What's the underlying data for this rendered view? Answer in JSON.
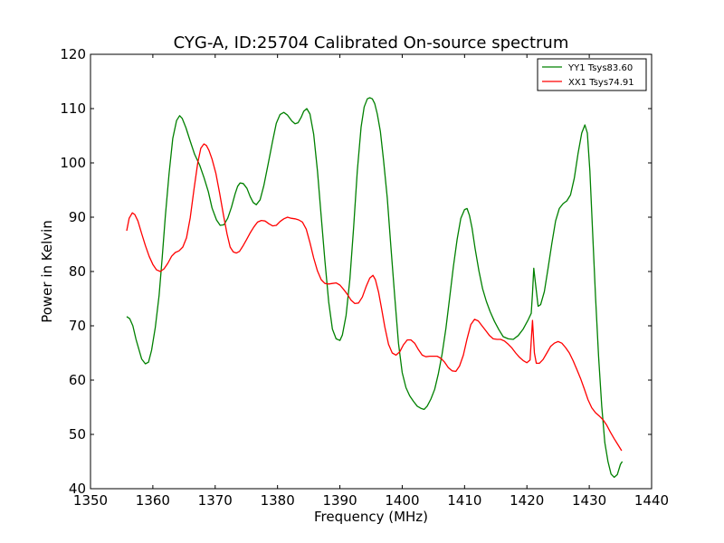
{
  "chart_data": {
    "type": "line",
    "title": "CYG-A, ID:25704 Calibrated On-source spectrum",
    "xlabel": "Frequency (MHz)",
    "ylabel": "Power in Kelvin",
    "xlim": [
      1350,
      1440
    ],
    "ylim": [
      40,
      120
    ],
    "xticks": [
      "1350",
      "1360",
      "1370",
      "1380",
      "1390",
      "1400",
      "1410",
      "1420",
      "1430",
      "1440"
    ],
    "yticks": [
      "40",
      "50",
      "60",
      "70",
      "80",
      "90",
      "100",
      "110",
      "120"
    ],
    "grid": false,
    "legend_position": "top-right",
    "series": [
      {
        "name": "YY1 Tsys83.60",
        "color": "#008000",
        "x": [
          1355.8,
          1356.3,
          1356.8,
          1357.3,
          1358.2,
          1358.8,
          1359.3,
          1359.8,
          1360.4,
          1361.0,
          1361.5,
          1362.0,
          1362.6,
          1363.2,
          1363.8,
          1364.3,
          1364.7,
          1365.3,
          1366.0,
          1366.7,
          1367.5,
          1368.2,
          1368.9,
          1369.5,
          1370.2,
          1370.8,
          1371.4,
          1372.0,
          1372.6,
          1373.2,
          1373.6,
          1374.0,
          1374.5,
          1375.1,
          1375.6,
          1376.1,
          1376.6,
          1377.2,
          1377.8,
          1378.5,
          1379.2,
          1379.8,
          1380.4,
          1381.0,
          1381.6,
          1382.3,
          1382.8,
          1383.3,
          1383.8,
          1384.2,
          1384.7,
          1385.2,
          1385.8,
          1386.4,
          1387.0,
          1387.6,
          1388.2,
          1388.8,
          1389.4,
          1390.0,
          1390.4,
          1391.0,
          1391.6,
          1392.2,
          1392.8,
          1393.4,
          1393.9,
          1394.4,
          1394.8,
          1395.2,
          1395.6,
          1396.0,
          1396.5,
          1397.0,
          1397.6,
          1398.2,
          1398.8,
          1399.4,
          1400.0,
          1400.6,
          1401.2,
          1401.8,
          1402.4,
          1403.0,
          1403.5,
          1404.0,
          1404.6,
          1405.2,
          1405.8,
          1406.4,
          1407.0,
          1407.6,
          1408.2,
          1408.8,
          1409.4,
          1410.0,
          1410.4,
          1410.8,
          1411.2,
          1411.7,
          1412.3,
          1412.9,
          1413.5,
          1414.1,
          1414.8,
          1415.5,
          1416.2,
          1417.0,
          1417.8,
          1418.6,
          1419.4,
          1420.2,
          1420.7,
          1420.9,
          1421.1,
          1421.4,
          1421.8,
          1422.2,
          1422.8,
          1423.4,
          1424.0,
          1424.6,
          1425.2,
          1425.8,
          1426.4,
          1427.0,
          1427.6,
          1428.2,
          1428.8,
          1429.3,
          1429.7,
          1430.1,
          1430.5,
          1431.0,
          1431.5,
          1432.0,
          1432.5,
          1433.0,
          1433.5,
          1434.0,
          1434.5,
          1435.0,
          1435.3
        ],
        "values": [
          71.7,
          71.3,
          70.0,
          67.5,
          63.9,
          63.0,
          63.3,
          65.5,
          69.7,
          75.6,
          82.5,
          90.2,
          98.0,
          104.5,
          107.8,
          108.7,
          108.2,
          106.5,
          104.0,
          101.6,
          99.6,
          97.3,
          94.7,
          91.7,
          89.5,
          88.5,
          88.6,
          89.8,
          91.8,
          94.3,
          95.7,
          96.3,
          96.2,
          95.3,
          93.8,
          92.7,
          92.3,
          93.2,
          95.8,
          99.8,
          104.0,
          107.3,
          108.9,
          109.3,
          108.8,
          107.7,
          107.2,
          107.4,
          108.4,
          109.5,
          110.0,
          109.0,
          105.3,
          98.5,
          90.2,
          82.0,
          74.4,
          69.4,
          67.6,
          67.3,
          68.3,
          71.9,
          78.6,
          88.0,
          98.5,
          106.6,
          110.3,
          111.8,
          112.0,
          111.8,
          110.9,
          109.0,
          105.8,
          100.5,
          93.6,
          84.4,
          75.3,
          66.8,
          61.4,
          58.6,
          57.1,
          56.1,
          55.2,
          54.8,
          54.6,
          55.2,
          56.5,
          58.3,
          61.2,
          64.8,
          69.5,
          75.1,
          80.8,
          85.9,
          89.8,
          91.4,
          91.6,
          90.3,
          88.0,
          84.2,
          80.1,
          76.8,
          74.5,
          72.6,
          70.8,
          69.3,
          68.0,
          67.6,
          67.5,
          68.2,
          69.4,
          71.1,
          72.3,
          76.0,
          80.6,
          77.5,
          73.6,
          73.9,
          76.3,
          80.6,
          85.2,
          89.3,
          91.6,
          92.5,
          93.0,
          94.1,
          97.2,
          101.7,
          105.5,
          107.0,
          105.5,
          98.5,
          88.1,
          75.5,
          64.4,
          55.2,
          48.5,
          45.0,
          42.7,
          42.1,
          42.6,
          44.5,
          45.0
        ]
      },
      {
        "name": "XX1 Tsys74.91",
        "color": "#ff0000",
        "x": [
          1355.8,
          1356.2,
          1356.7,
          1357.1,
          1357.6,
          1358.2,
          1358.8,
          1359.4,
          1360.0,
          1360.6,
          1361.2,
          1361.8,
          1362.4,
          1363.0,
          1363.6,
          1364.2,
          1364.8,
          1365.4,
          1366.0,
          1366.6,
          1367.2,
          1367.7,
          1368.2,
          1368.6,
          1369.0,
          1369.5,
          1370.1,
          1370.7,
          1371.3,
          1371.9,
          1372.4,
          1372.9,
          1373.4,
          1373.9,
          1374.4,
          1375.0,
          1375.6,
          1376.2,
          1376.8,
          1377.4,
          1378.0,
          1378.6,
          1379.2,
          1379.8,
          1380.4,
          1381.0,
          1381.6,
          1382.2,
          1382.8,
          1383.4,
          1384.0,
          1384.6,
          1385.2,
          1385.8,
          1386.4,
          1387.0,
          1387.6,
          1388.2,
          1388.8,
          1389.4,
          1390.0,
          1390.6,
          1391.2,
          1391.8,
          1392.4,
          1393.0,
          1393.6,
          1394.2,
          1394.8,
          1395.3,
          1395.7,
          1396.2,
          1396.7,
          1397.2,
          1397.8,
          1398.4,
          1399.0,
          1399.6,
          1400.2,
          1400.8,
          1401.4,
          1402.0,
          1402.6,
          1403.2,
          1403.8,
          1404.4,
          1405.0,
          1405.6,
          1406.2,
          1406.8,
          1407.4,
          1408.0,
          1408.6,
          1409.2,
          1409.8,
          1410.4,
          1411.0,
          1411.6,
          1412.2,
          1412.8,
          1413.4,
          1414.0,
          1414.6,
          1415.2,
          1415.8,
          1416.4,
          1417.0,
          1417.6,
          1418.2,
          1418.8,
          1419.4,
          1420.0,
          1420.5,
          1420.9,
          1421.2,
          1421.5,
          1422.0,
          1422.6,
          1423.2,
          1423.8,
          1424.4,
          1425.0,
          1425.6,
          1426.2,
          1426.8,
          1427.4,
          1428.0,
          1428.6,
          1429.2,
          1429.8,
          1430.4,
          1431.0,
          1431.6,
          1432.2,
          1432.8,
          1433.4,
          1434.0,
          1434.6,
          1435.2
        ],
        "values": [
          87.5,
          89.8,
          90.8,
          90.5,
          89.3,
          87.0,
          84.8,
          82.8,
          81.3,
          80.3,
          80.0,
          80.5,
          81.5,
          82.8,
          83.5,
          83.8,
          84.5,
          86.2,
          89.9,
          95.2,
          100.0,
          102.7,
          103.5,
          103.2,
          102.3,
          100.7,
          98.1,
          94.5,
          90.6,
          86.9,
          84.5,
          83.6,
          83.4,
          83.7,
          84.6,
          85.8,
          87.1,
          88.2,
          89.1,
          89.4,
          89.3,
          88.8,
          88.4,
          88.5,
          89.2,
          89.7,
          90.0,
          89.8,
          89.7,
          89.5,
          89.1,
          87.8,
          85.3,
          82.5,
          80.1,
          78.5,
          77.8,
          77.7,
          77.8,
          77.9,
          77.5,
          76.7,
          75.8,
          74.7,
          74.1,
          74.2,
          75.3,
          77.2,
          78.8,
          79.3,
          78.5,
          76.2,
          73.1,
          69.8,
          66.6,
          65.0,
          64.6,
          65.2,
          66.5,
          67.4,
          67.4,
          66.8,
          65.6,
          64.6,
          64.3,
          64.4,
          64.4,
          64.4,
          64.0,
          63.3,
          62.3,
          61.7,
          61.6,
          62.6,
          64.6,
          67.6,
          70.2,
          71.2,
          70.9,
          70.0,
          69.1,
          68.2,
          67.6,
          67.5,
          67.5,
          67.2,
          66.6,
          65.9,
          65.0,
          64.2,
          63.6,
          63.2,
          63.7,
          71.0,
          65.0,
          63.1,
          63.1,
          63.8,
          65.0,
          66.2,
          66.8,
          67.1,
          66.8,
          66.0,
          65.0,
          63.6,
          62.0,
          60.3,
          58.4,
          56.4,
          54.9,
          54.0,
          53.4,
          52.7,
          51.7,
          50.4,
          49.2,
          48.1,
          47.0
        ]
      }
    ]
  }
}
